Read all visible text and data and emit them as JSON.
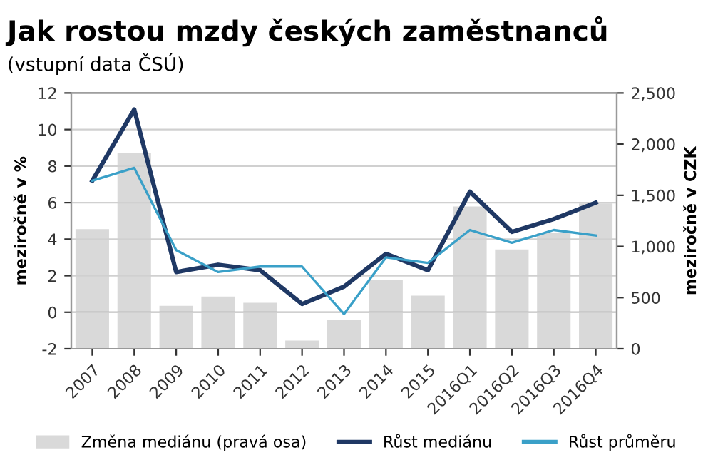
{
  "chart_data": {
    "type": "bar",
    "title": "Jak rostou mzdy českých zaměstnanců",
    "subtitle": "(vstupní data ČSÚ)",
    "ylabel": "meziročně v %",
    "y2label": "meziročně v CZK",
    "categories": [
      "2007",
      "2008",
      "2009",
      "2010",
      "2011",
      "2012",
      "2013",
      "2014",
      "2015",
      "2016Q1",
      "2016Q2",
      "2016Q3",
      "2016Q4"
    ],
    "series": [
      {
        "name": "Změna mediánu (pravá osa)",
        "axis": "y2",
        "color": "#d9d9d9",
        "values": [
          1170,
          1910,
          420,
          510,
          450,
          80,
          280,
          670,
          520,
          1390,
          970,
          1130,
          1420
        ]
      },
      {
        "name": "Růst mediánu",
        "type": "line",
        "color": "#1f3864",
        "values": [
          7.2,
          11.1,
          2.2,
          2.6,
          2.3,
          0.45,
          1.4,
          3.2,
          2.3,
          6.6,
          4.4,
          5.1,
          6.0
        ]
      },
      {
        "name": "Růst průměru",
        "type": "line",
        "color": "#3aa0c8",
        "values": [
          7.2,
          7.9,
          3.4,
          2.2,
          2.5,
          2.5,
          -0.1,
          3.0,
          2.7,
          4.5,
          3.8,
          4.5,
          4.2
        ]
      }
    ],
    "ylim": [
      -2,
      12
    ],
    "yticks": [
      -2,
      0,
      2,
      4,
      6,
      8,
      10,
      12
    ],
    "y2lim": [
      0,
      2500
    ],
    "y2ticks": [
      0,
      500,
      {
        "value": 1000,
        "label": "1,000"
      },
      {
        "value": 1500,
        "label": "1,500"
      },
      {
        "value": 2000,
        "label": "2,000"
      },
      {
        "value": 2500,
        "label": "2,500"
      }
    ],
    "grid": "y",
    "legend": "bottom",
    "marker": "none",
    "line_style": "solid"
  }
}
